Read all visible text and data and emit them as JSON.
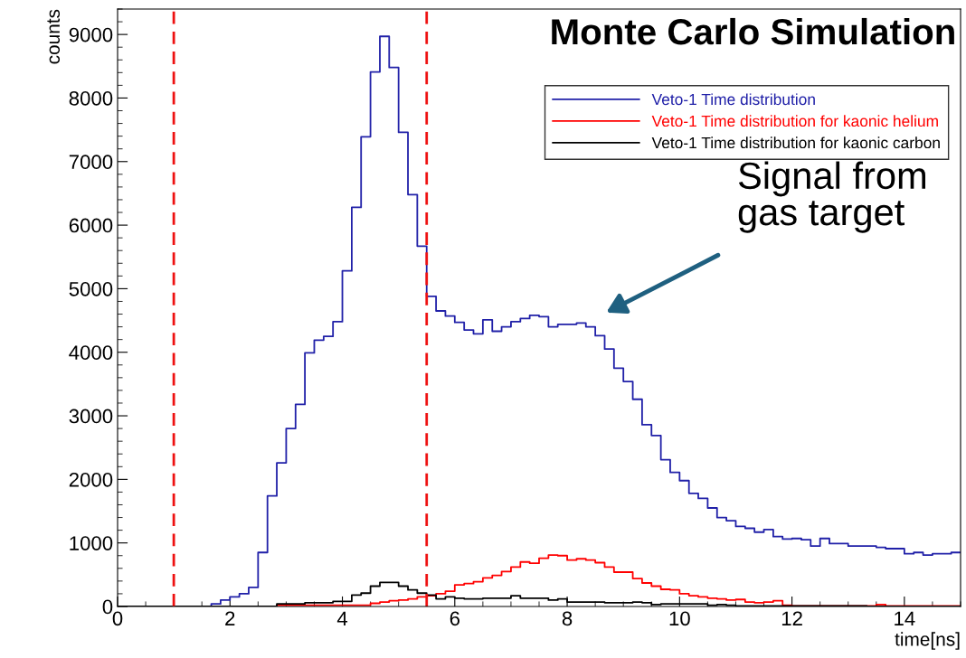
{
  "chart_data": {
    "type": "histogram",
    "title": "Monte Carlo Simulation",
    "xlabel": "time[ns]",
    "ylabel": "counts",
    "bins": [
      0,
      0.167,
      0.333,
      0.5,
      0.667,
      0.833,
      1,
      1.167,
      1.333,
      1.5,
      1.667,
      1.833,
      2,
      2.167,
      2.333,
      2.5,
      2.667,
      2.833,
      3,
      3.167,
      3.333,
      3.5,
      3.667,
      3.833,
      4,
      4.167,
      4.333,
      4.5,
      4.667,
      4.833,
      5,
      5.167,
      5.333,
      5.5,
      5.667,
      5.833,
      6,
      6.167,
      6.333,
      6.5,
      6.667,
      6.833,
      7,
      7.167,
      7.333,
      7.5,
      7.667,
      7.833,
      8,
      8.167,
      8.333,
      8.5,
      8.667,
      8.833,
      9,
      9.167,
      9.333,
      9.5,
      9.667,
      9.833,
      10,
      10.167,
      10.333,
      10.5,
      10.667,
      10.833,
      11,
      11.167,
      11.333,
      11.5,
      11.667,
      11.833,
      12,
      12.167,
      12.333,
      12.5,
      12.667,
      12.833,
      13,
      13.167,
      13.333,
      13.5,
      13.667,
      13.833,
      14,
      14.167,
      14.333,
      14.5,
      14.667,
      14.833,
      15
    ],
    "series": [
      {
        "name": "Veto-1 Time distribution",
        "color": "#2020a8",
        "values": [
          0,
          0,
          0,
          0,
          0,
          0,
          0,
          0,
          0,
          0,
          40,
          100,
          150,
          200,
          300,
          850,
          1740,
          2260,
          2800,
          3180,
          3990,
          4190,
          4250,
          4480,
          5280,
          6280,
          7390,
          8410,
          8970,
          8480,
          7460,
          6480,
          5670,
          4880,
          4650,
          4570,
          4470,
          4350,
          4290,
          4510,
          4330,
          4400,
          4480,
          4530,
          4580,
          4560,
          4400,
          4440,
          4440,
          4460,
          4400,
          4260,
          4050,
          3750,
          3540,
          3260,
          2860,
          2690,
          2310,
          2110,
          1980,
          1780,
          1700,
          1550,
          1400,
          1350,
          1260,
          1230,
          1170,
          1210,
          1100,
          1060,
          1070,
          1050,
          950,
          1070,
          990,
          990,
          950,
          950,
          950,
          930,
          910,
          910,
          830,
          850,
          810,
          830,
          830,
          850
        ]
      },
      {
        "name": "Veto-1 Time distribution for kaonic helium",
        "color": "#ff0000",
        "values": [
          0,
          0,
          0,
          0,
          0,
          0,
          0,
          0,
          0,
          0,
          0,
          0,
          0,
          0,
          0,
          0,
          0,
          20,
          20,
          20,
          20,
          20,
          20,
          20,
          20,
          20,
          20,
          50,
          70,
          90,
          100,
          120,
          150,
          170,
          200,
          240,
          340,
          360,
          390,
          450,
          490,
          550,
          620,
          700,
          680,
          760,
          810,
          800,
          730,
          750,
          730,
          690,
          620,
          540,
          540,
          440,
          370,
          320,
          270,
          260,
          200,
          170,
          150,
          130,
          120,
          100,
          110,
          70,
          60,
          70,
          90,
          20,
          10,
          10,
          10,
          10,
          10,
          10,
          10,
          10,
          10,
          30,
          10,
          10,
          10,
          10,
          10,
          10,
          10,
          10
        ]
      },
      {
        "name": "Veto-1 Time distribution for kaonic carbon",
        "color": "#000000",
        "values": [
          0,
          0,
          0,
          0,
          0,
          0,
          0,
          0,
          0,
          0,
          0,
          0,
          0,
          0,
          0,
          0,
          0,
          40,
          40,
          40,
          60,
          60,
          60,
          80,
          80,
          180,
          210,
          320,
          380,
          380,
          320,
          260,
          210,
          180,
          120,
          150,
          130,
          120,
          120,
          130,
          130,
          130,
          170,
          130,
          130,
          130,
          100,
          120,
          70,
          70,
          70,
          70,
          60,
          60,
          60,
          70,
          60,
          30,
          40,
          40,
          40,
          40,
          40,
          20,
          30,
          20,
          10,
          10,
          10,
          10,
          10,
          10,
          10,
          10,
          10,
          10,
          10,
          10,
          10,
          10,
          0,
          0,
          0,
          0,
          0,
          0,
          0,
          0,
          0,
          0
        ]
      }
    ],
    "xlim": [
      0,
      15
    ],
    "ylim": [
      0,
      9400
    ],
    "xticks": [
      0,
      2,
      4,
      6,
      8,
      10,
      12,
      14
    ],
    "yticks": [
      0,
      1000,
      2000,
      3000,
      4000,
      5000,
      6000,
      7000,
      8000,
      9000
    ],
    "ref_lines": [
      {
        "axis": "x",
        "value": 1,
        "color": "#ee1111",
        "line_style": "dashed"
      },
      {
        "axis": "x",
        "value": 5.5,
        "color": "#ee1111",
        "line_style": "dashed"
      }
    ],
    "annotations": [
      "Signal from\ngas target"
    ],
    "legend": "top right",
    "grid": false
  }
}
